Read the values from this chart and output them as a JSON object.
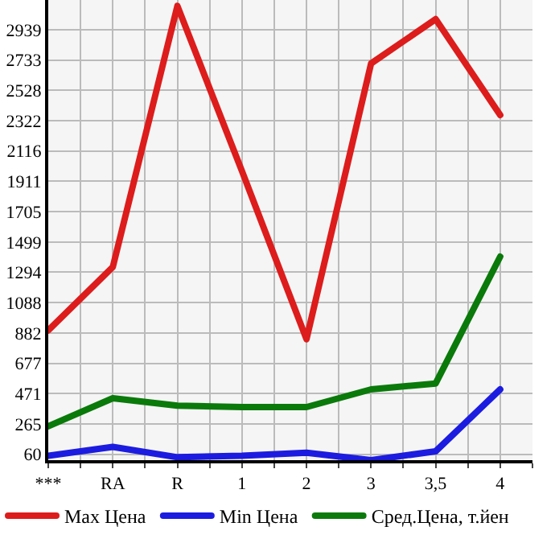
{
  "chart_data": {
    "type": "line",
    "categories": [
      "***",
      "RA",
      "R",
      "1",
      "2",
      "3",
      "3,5",
      "4"
    ],
    "series": [
      {
        "name": "Max Цена",
        "color": "#dd1c1c",
        "values": [
          900,
          1330,
          3100,
          1980,
          840,
          2710,
          3010,
          2360
        ]
      },
      {
        "name": "Min Цена",
        "color": "#1c1ce0",
        "values": [
          50,
          110,
          40,
          50,
          70,
          20,
          80,
          500
        ]
      },
      {
        "name": "Сред.Цена, т.йен",
        "color": "#0a7a0a",
        "values": [
          250,
          440,
          390,
          380,
          380,
          500,
          540,
          1400
        ]
      }
    ],
    "ylim": [
      20,
      3140
    ],
    "yticks": [
      60,
      265,
      471,
      677,
      882,
      1088,
      1294,
      1499,
      1705,
      1911,
      2116,
      2322,
      2528,
      2733,
      2939
    ],
    "grid": true,
    "legend": "bottom",
    "marker": "none",
    "line_style": "solid"
  }
}
